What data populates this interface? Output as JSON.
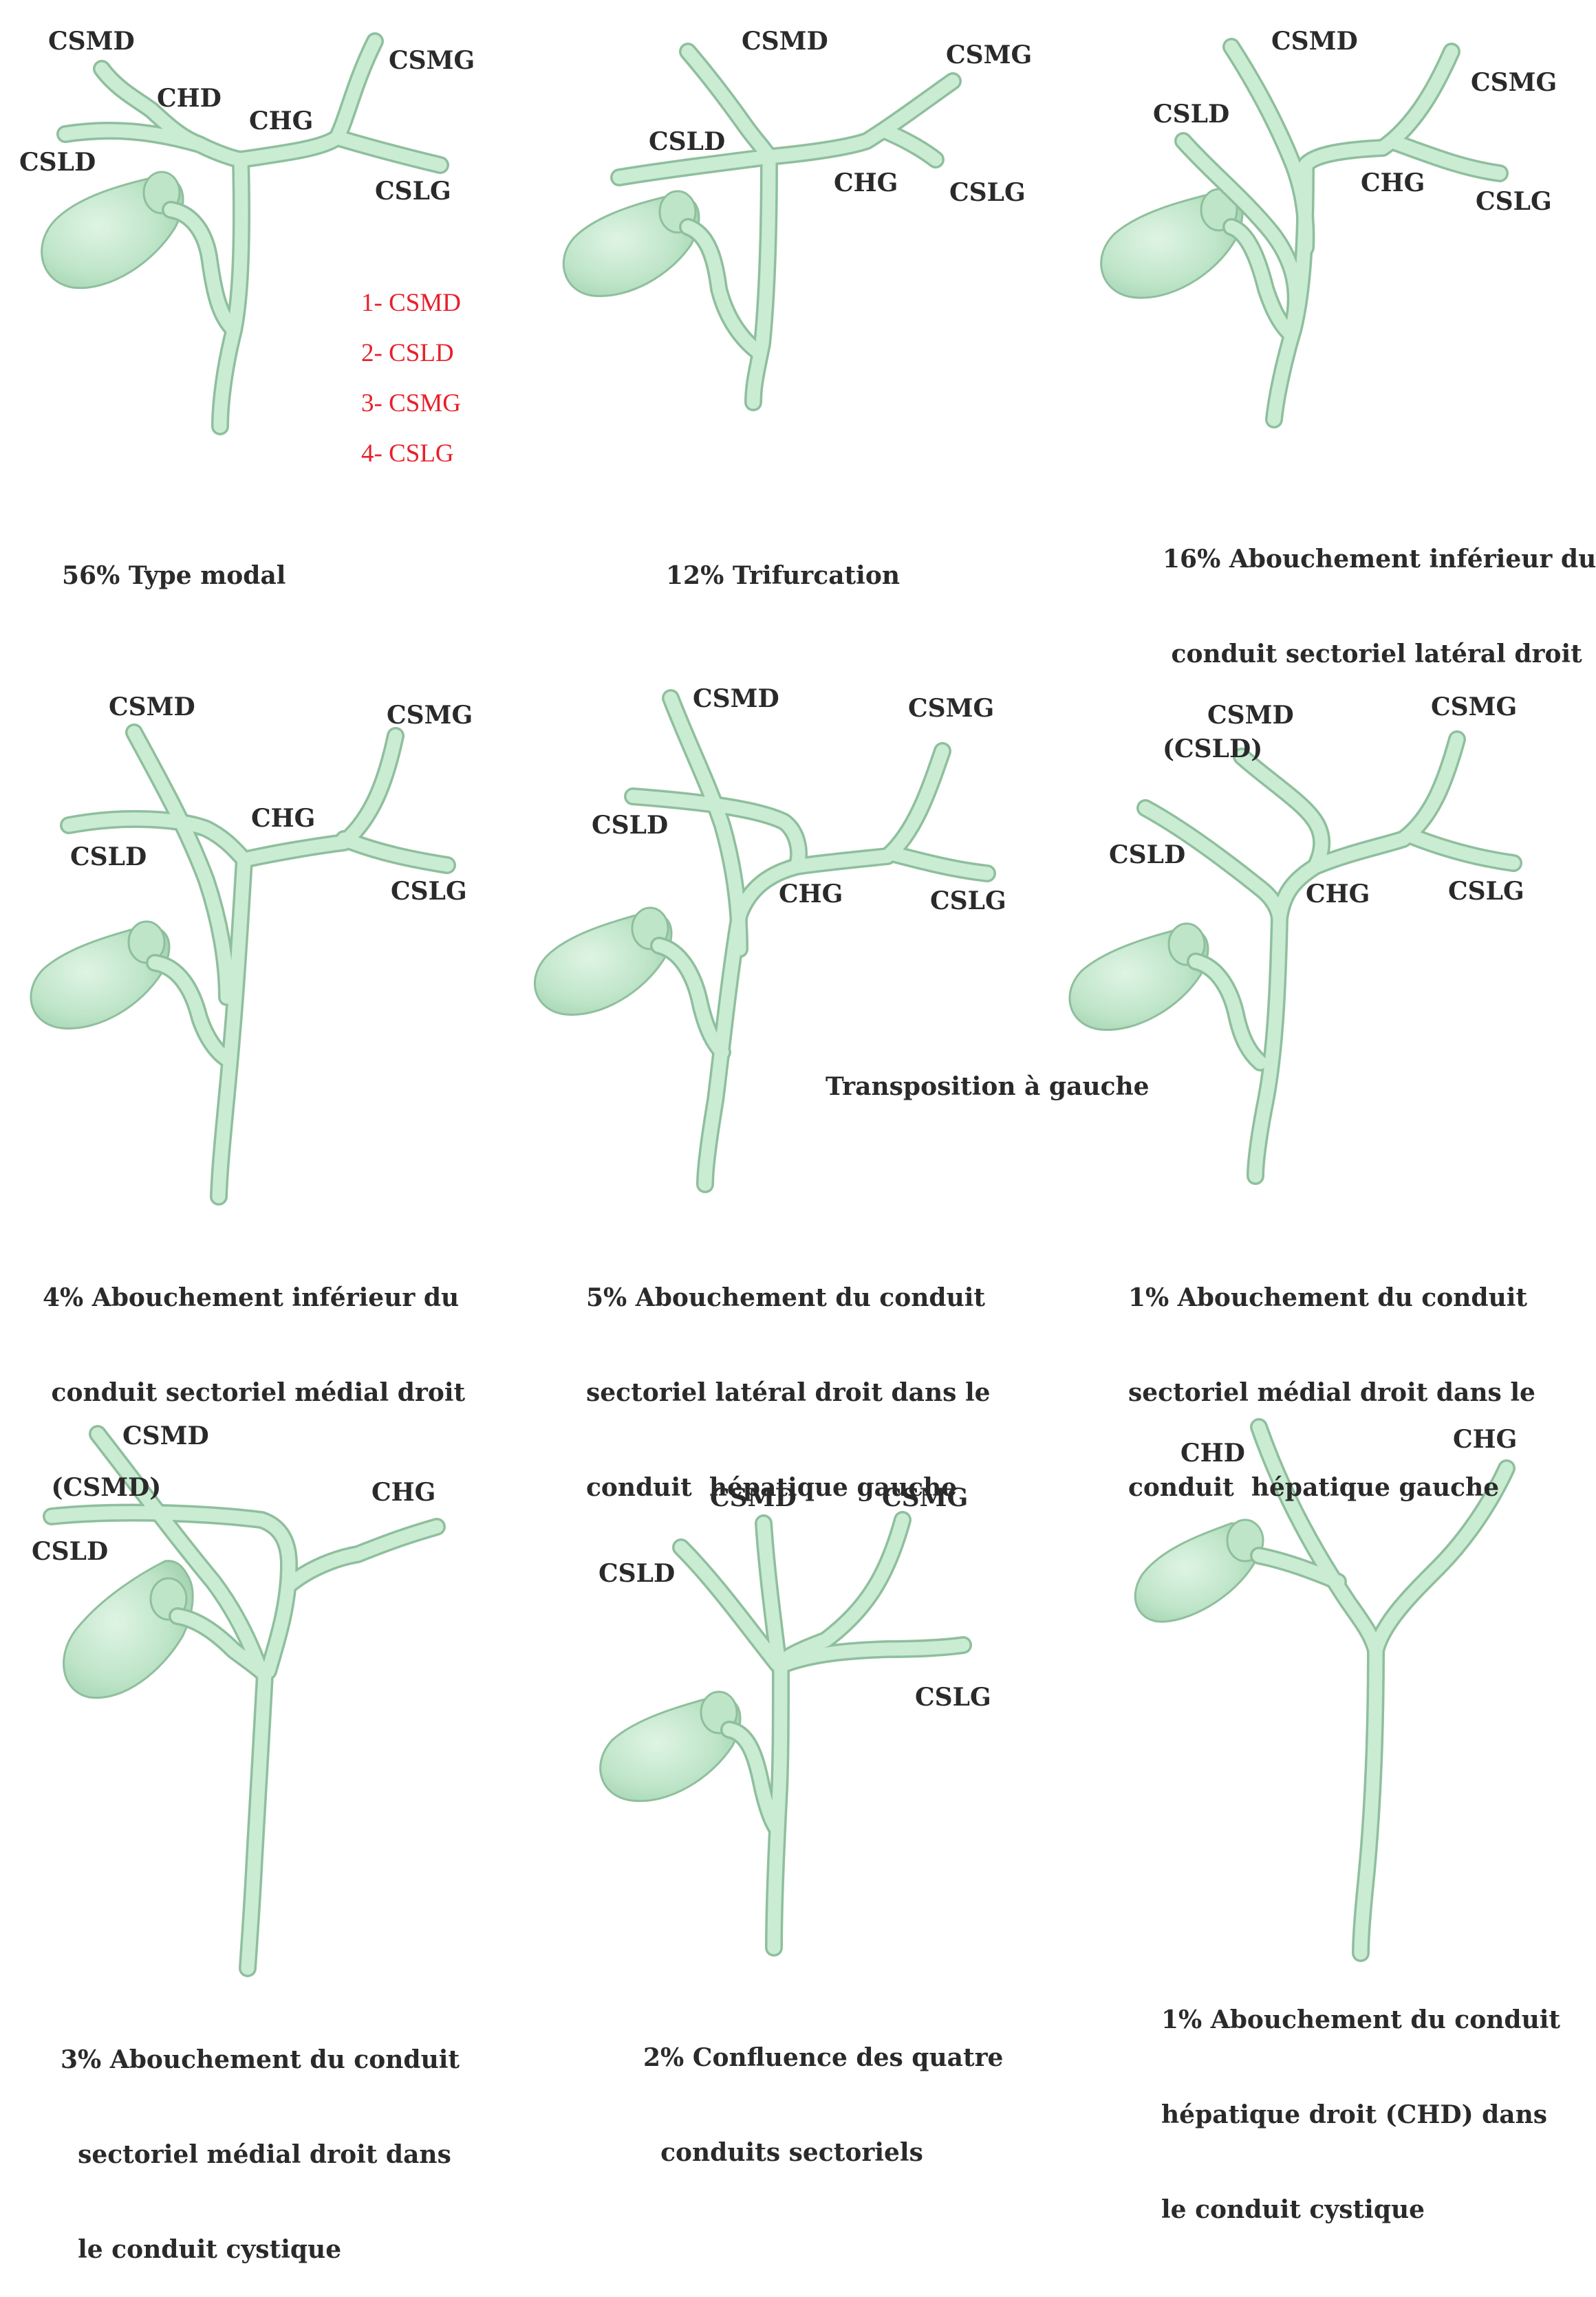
{
  "colors": {
    "duct_fill": "#c9ecd3",
    "duct_edge": "#8fbf9d",
    "gallbladder": "#b7e2c3",
    "text": "#2a2a2a",
    "legend": "#e8202a"
  },
  "legend": [
    "1- CSMD",
    "2- CSLD",
    "3- CSMG",
    "4- CSLG"
  ],
  "panels": [
    {
      "caption": [
        "56% Type modal"
      ],
      "labels": [
        "CSMD",
        "CHD",
        "CSLD",
        "CHG",
        "CSMG",
        "CSLG"
      ]
    },
    {
      "caption": [
        "12% Trifurcation"
      ],
      "labels": [
        "CSMD",
        "CSMG",
        "CSLD",
        "CHG",
        "CSLG"
      ]
    },
    {
      "caption": [
        "16% Abouchement inférieur du",
        " conduit sectoriel latéral droit",
        "(CSLD)"
      ],
      "labels": [
        "CSMD",
        "CSMG",
        "CSLD",
        "CHG",
        "CSLG"
      ]
    },
    {
      "caption": [
        "4% Abouchement inférieur du",
        " conduit sectoriel médial droit",
        " (CSMD)"
      ],
      "labels": [
        "CSMD",
        "CSMG",
        "CHG",
        "CSLD",
        "CSLG"
      ]
    },
    {
      "caption": [
        "5% Abouchement du conduit",
        "sectoriel latéral droit dans le",
        "conduit  hépatique gauche"
      ],
      "labels": [
        "CSMD",
        "CSMG",
        "CSLD",
        "CHG",
        "CSLG"
      ],
      "note": "Transposition à gauche"
    },
    {
      "caption": [
        "1% Abouchement du conduit",
        "sectoriel médial droit dans le",
        "conduit  hépatique gauche"
      ],
      "labels": [
        "CSMD",
        "CSMG",
        "CSLD",
        "CHG",
        "CSLG"
      ]
    },
    {
      "caption": [
        "3% Abouchement du conduit",
        "  sectoriel médial droit dans",
        "  le conduit cystique"
      ],
      "labels": [
        "CSMD",
        "CHG",
        "CSLD"
      ]
    },
    {
      "caption": [
        "2% Confluence des quatre",
        "  conduits sectoriels"
      ],
      "labels": [
        "CSMD",
        "CSMG",
        "CSLD",
        "CSLG"
      ]
    },
    {
      "caption": [
        "1% Abouchement du conduit",
        "hépatique droit (CHD) dans",
        "le conduit cystique"
      ],
      "labels": [
        "CHD",
        "CHG"
      ]
    }
  ]
}
